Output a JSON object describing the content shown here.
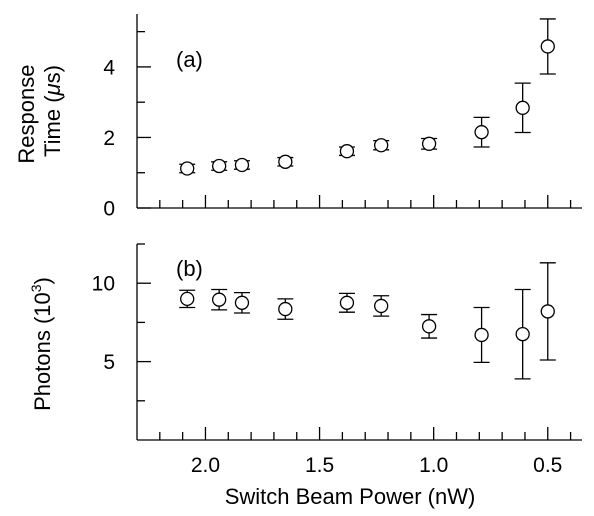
{
  "chart_data": [
    {
      "type": "scatter",
      "panel_label": "(a)",
      "ylabel_line1": "Response",
      "ylabel_line2_prefix": "Time (",
      "ylabel_unit_symbol": "μ",
      "ylabel_line2_suffix": "s)",
      "xlim": [
        2.3,
        0.35
      ],
      "ylim": [
        0,
        5.5
      ],
      "yticks_major": [
        0,
        2,
        4
      ],
      "yticks_minor": [
        1,
        3,
        5
      ],
      "ytick_labels": [
        "0",
        "2",
        "4"
      ],
      "x_axis_inverted": true,
      "points": [
        {
          "x": 2.08,
          "y": 1.12,
          "err": 0.12
        },
        {
          "x": 1.94,
          "y": 1.19,
          "err": 0.12
        },
        {
          "x": 1.84,
          "y": 1.22,
          "err": 0.12
        },
        {
          "x": 1.65,
          "y": 1.31,
          "err": 0.12
        },
        {
          "x": 1.38,
          "y": 1.61,
          "err": 0.12
        },
        {
          "x": 1.23,
          "y": 1.78,
          "err": 0.13
        },
        {
          "x": 1.02,
          "y": 1.82,
          "err": 0.15
        },
        {
          "x": 0.79,
          "y": 2.15,
          "err": 0.42
        },
        {
          "x": 0.61,
          "y": 2.84,
          "err": 0.7
        },
        {
          "x": 0.5,
          "y": 4.58,
          "err": 0.78
        }
      ]
    },
    {
      "type": "scatter",
      "panel_label": "(b)",
      "ylabel_prefix": "Photons (10",
      "ylabel_exponent": "3",
      "ylabel_suffix": ")",
      "xlabel": "Switch Beam Power (nW)",
      "xlim": [
        2.3,
        0.35
      ],
      "ylim": [
        0,
        12.5
      ],
      "yticks_major": [
        5,
        10
      ],
      "yticks_minor": [
        2.5,
        7.5,
        12.5
      ],
      "ytick_labels": [
        "5",
        "10"
      ],
      "xticks_major": [
        2.0,
        1.5,
        1.0,
        0.5
      ],
      "xtick_labels": [
        "2.0",
        "1.5",
        "1.0",
        "0.5"
      ],
      "xticks_minor_step": 0.1,
      "x_axis_inverted": true,
      "points": [
        {
          "x": 2.08,
          "y": 9.0,
          "err": 0.55
        },
        {
          "x": 1.94,
          "y": 8.95,
          "err": 0.65
        },
        {
          "x": 1.84,
          "y": 8.75,
          "err": 0.65
        },
        {
          "x": 1.65,
          "y": 8.35,
          "err": 0.65
        },
        {
          "x": 1.38,
          "y": 8.75,
          "err": 0.6
        },
        {
          "x": 1.23,
          "y": 8.55,
          "err": 0.65
        },
        {
          "x": 1.02,
          "y": 7.25,
          "err": 0.75
        },
        {
          "x": 0.79,
          "y": 6.7,
          "err": 1.75
        },
        {
          "x": 0.61,
          "y": 6.75,
          "err": 2.85
        },
        {
          "x": 0.5,
          "y": 8.2,
          "err": 3.1
        }
      ]
    }
  ]
}
